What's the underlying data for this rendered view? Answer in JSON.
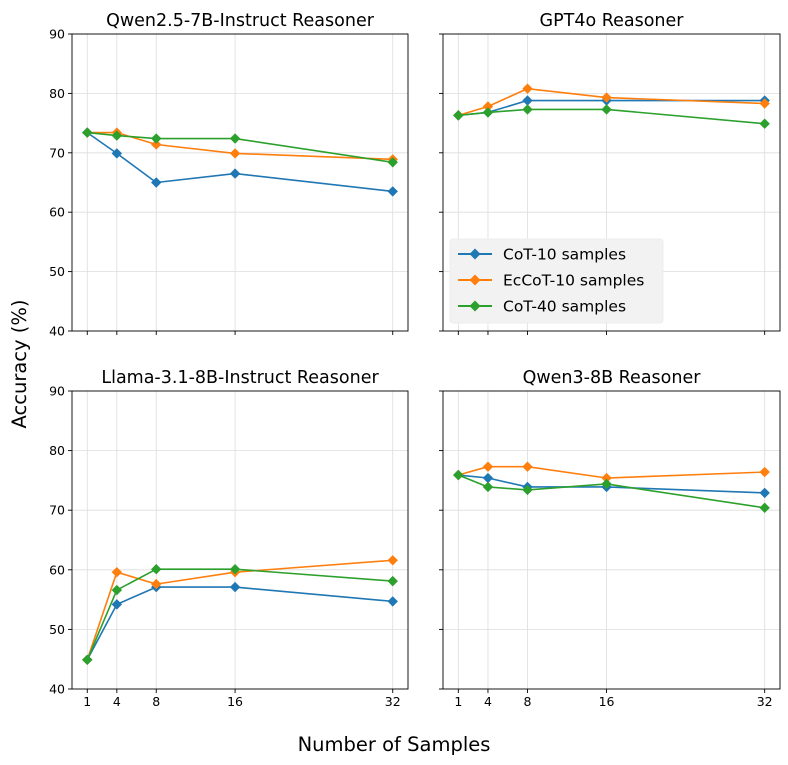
{
  "xlabel": "Number of Samples",
  "ylabel": "Accuracy (%)",
  "colors": {
    "CoT-10 samples": "#1f77b4",
    "EcCoT-10 samples": "#ff7f0e",
    "CoT-40 samples": "#2ca02c"
  },
  "legend": {
    "panel_index": 1,
    "placement": "lower-left",
    "entries": [
      "CoT-10 samples",
      "EcCoT-10 samples",
      "CoT-40 samples"
    ]
  },
  "chart_data": [
    {
      "type": "line",
      "title": "Qwen2.5-7B-Instruct Reasoner",
      "x": [
        1,
        4,
        8,
        16,
        32
      ],
      "xticks": [
        1,
        4,
        8,
        16,
        32
      ],
      "xticks_visible": false,
      "yticks": [
        40,
        50,
        60,
        70,
        80,
        90
      ],
      "yticks_visible": true,
      "ylim": [
        40,
        90
      ],
      "grid": true,
      "series": [
        {
          "name": "CoT-10 samples",
          "values": [
            73.4,
            69.9,
            65.0,
            66.5,
            63.5
          ]
        },
        {
          "name": "EcCoT-10 samples",
          "values": [
            73.4,
            73.4,
            71.4,
            69.9,
            68.9
          ]
        },
        {
          "name": "CoT-40 samples",
          "values": [
            73.4,
            72.9,
            72.4,
            72.4,
            68.4
          ]
        }
      ]
    },
    {
      "type": "line",
      "title": "GPT4o Reasoner",
      "x": [
        1,
        4,
        8,
        16,
        32
      ],
      "xticks": [
        1,
        4,
        8,
        16,
        32
      ],
      "xticks_visible": false,
      "yticks": [
        40,
        50,
        60,
        70,
        80,
        90
      ],
      "yticks_visible": false,
      "ylim": [
        40,
        90
      ],
      "grid": true,
      "series": [
        {
          "name": "CoT-10 samples",
          "values": [
            76.3,
            76.8,
            78.8,
            78.8,
            78.8
          ]
        },
        {
          "name": "EcCoT-10 samples",
          "values": [
            76.3,
            77.8,
            80.8,
            79.3,
            78.3
          ]
        },
        {
          "name": "CoT-40 samples",
          "values": [
            76.3,
            76.8,
            77.3,
            77.3,
            74.9
          ]
        }
      ]
    },
    {
      "type": "line",
      "title": "Llama-3.1-8B-Instruct Reasoner",
      "x": [
        1,
        4,
        8,
        16,
        32
      ],
      "xticks": [
        1,
        4,
        8,
        16,
        32
      ],
      "xticks_visible": true,
      "yticks": [
        40,
        50,
        60,
        70,
        80,
        90
      ],
      "yticks_visible": true,
      "ylim": [
        40,
        90
      ],
      "grid": true,
      "series": [
        {
          "name": "CoT-10 samples",
          "values": [
            44.9,
            54.2,
            57.1,
            57.1,
            54.7
          ]
        },
        {
          "name": "EcCoT-10 samples",
          "values": [
            44.9,
            59.6,
            57.6,
            59.6,
            61.6
          ]
        },
        {
          "name": "CoT-40 samples",
          "values": [
            44.9,
            56.6,
            60.1,
            60.1,
            58.1
          ]
        }
      ]
    },
    {
      "type": "line",
      "title": "Qwen3-8B Reasoner",
      "x": [
        1,
        4,
        8,
        16,
        32
      ],
      "xticks": [
        1,
        4,
        8,
        16,
        32
      ],
      "xticks_visible": true,
      "yticks": [
        40,
        50,
        60,
        70,
        80,
        90
      ],
      "yticks_visible": false,
      "ylim": [
        40,
        90
      ],
      "grid": true,
      "series": [
        {
          "name": "CoT-10 samples",
          "values": [
            75.9,
            75.4,
            73.9,
            73.9,
            72.9
          ]
        },
        {
          "name": "EcCoT-10 samples",
          "values": [
            75.9,
            77.3,
            77.3,
            75.4,
            76.4
          ]
        },
        {
          "name": "CoT-40 samples",
          "values": [
            75.9,
            73.9,
            73.4,
            74.4,
            70.4
          ]
        }
      ]
    }
  ]
}
